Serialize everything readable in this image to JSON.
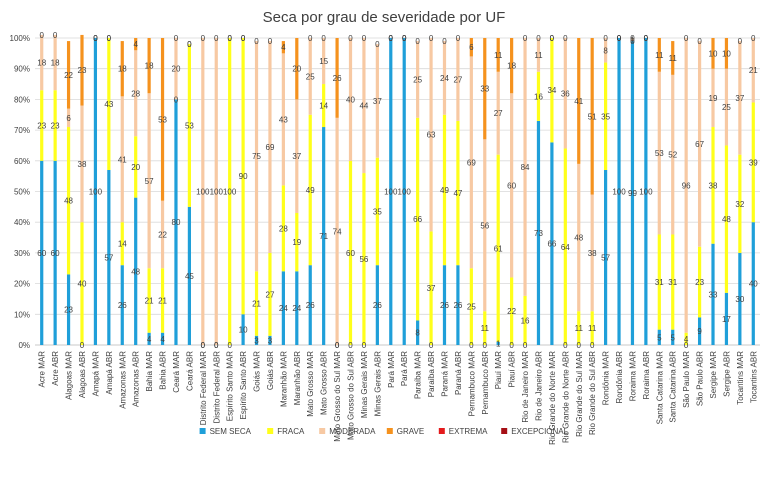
{
  "chart_data": {
    "type": "bar",
    "stacked": "percent",
    "title": "Seca por grau de severidade por UF",
    "xlabel": "",
    "ylabel": "",
    "ylim": [
      0,
      100
    ],
    "y_ticks": [
      "0%",
      "10%",
      "20%",
      "30%",
      "40%",
      "50%",
      "60%",
      "70%",
      "80%",
      "90%",
      "100%"
    ],
    "grid": true,
    "legend_position": "bottom",
    "categories": [
      "Acre MAR",
      "Acre ABR",
      "Alagoas MAR",
      "Alagoas ABR",
      "Amapá MAR",
      "Amapá ABR",
      "Amazonas MAR",
      "Amazonas ABR",
      "Bahia MAR",
      "Bahia ABR",
      "Ceará MAR",
      "Ceará ABR",
      "Distrito Federal MAR",
      "Distrito Federal ABR",
      "Espírito Santo MAR",
      "Espírito Santo ABR",
      "Goiás MAR",
      "Goiás ABR",
      "Maranhão MAR",
      "Maranhão ABR",
      "Mato Grosso MAR",
      "Mato Grosso ABR",
      "Mato Grosso do Sul MAR",
      "Mato Grosso do Sul ABR",
      "Minas Gerais MAR",
      "Minas Gerais ABR",
      "Pará MAR",
      "Pará ABR",
      "Paraíba MAR",
      "Paraíba ABR",
      "Paraná MAR",
      "Paraná ABR",
      "Pernambuco MAR",
      "Pernambuco ABR",
      "Piauí MAR",
      "Piauí ABR",
      "Rio de Janeiro MAR",
      "Rio de Janeiro ABR",
      "Rio Grande do Norte MAR",
      "Rio Grande do Norte ABR",
      "Rio Grande do Sul MAR",
      "Rio Grande do Sul ABR",
      "Rondônia MAR",
      "Rondônia ABR",
      "Roraima MAR",
      "Roraima ABR",
      "Santa Catarina MAR",
      "Santa Catarina ABR",
      "São Paulo MAR",
      "São Paulo ABR",
      "Sergipe MAR",
      "Sergipe ABR",
      "Tocantins MAR",
      "Tocantins ABR"
    ],
    "series": [
      {
        "name": "SEM SECA",
        "color": "#1f9fd9",
        "values": [
          60,
          60,
          23,
          0,
          100,
          57,
          26,
          48,
          4,
          4,
          80,
          45,
          0,
          0,
          0,
          10,
          3,
          3,
          24,
          24,
          26,
          71,
          0,
          0,
          0,
          26,
          100,
          100,
          8,
          0,
          26,
          26,
          0,
          0,
          1,
          0,
          0,
          73,
          66,
          0,
          0,
          0,
          57,
          100,
          99,
          100,
          5,
          5,
          0,
          9,
          33,
          17,
          30,
          40
        ]
      },
      {
        "name": "FRACA",
        "color": "#ffff1a",
        "values": [
          23,
          23,
          48,
          40,
          0,
          43,
          14,
          20,
          21,
          21,
          0,
          53,
          0,
          0,
          100,
          90,
          21,
          27,
          28,
          19,
          49,
          14,
          0,
          60,
          56,
          35,
          0,
          0,
          66,
          37,
          49,
          47,
          25,
          11,
          61,
          22,
          16,
          16,
          34,
          64,
          11,
          11,
          35,
          0,
          0,
          0,
          31,
          31,
          4,
          23,
          38,
          48,
          32,
          39
        ]
      },
      {
        "name": "MODERADA",
        "color": "#f7c9a3",
        "values": [
          18,
          18,
          6,
          38,
          0,
          0,
          41,
          28,
          57,
          22,
          20,
          0,
          100,
          100,
          0,
          0,
          75,
          69,
          43,
          37,
          25,
          15,
          74,
          40,
          44,
          37,
          0,
          0,
          25,
          63,
          24,
          27,
          69,
          56,
          27,
          60,
          84,
          11,
          0,
          36,
          48,
          38,
          8,
          0,
          1,
          0,
          53,
          52,
          96,
          67,
          19,
          25,
          37,
          21
        ]
      },
      {
        "name": "GRAVE",
        "color": "#f5921e",
        "values": [
          0,
          0,
          22,
          23,
          0,
          0,
          18,
          4,
          18,
          53,
          0,
          0,
          0,
          0,
          0,
          0,
          0,
          0,
          4,
          20,
          0,
          0,
          26,
          0,
          0,
          0,
          0,
          0,
          0,
          0,
          0,
          0,
          6,
          33,
          11,
          18,
          0,
          0,
          0,
          0,
          41,
          51,
          0,
          0,
          0,
          0,
          11,
          11,
          0,
          0,
          10,
          10,
          0,
          0
        ]
      },
      {
        "name": "EXTREMA",
        "color": "#e41a1c",
        "values": [
          0,
          0,
          0,
          0,
          0,
          0,
          0,
          0,
          0,
          0,
          0,
          0,
          0,
          0,
          0,
          0,
          0,
          0,
          0,
          0,
          0,
          0,
          0,
          0,
          0,
          0,
          0,
          0,
          0,
          0,
          0,
          0,
          0,
          0,
          0,
          0,
          0,
          0,
          0,
          0,
          0,
          0,
          0,
          0,
          0,
          0,
          0,
          0,
          0,
          0,
          0,
          0,
          0,
          0
        ]
      },
      {
        "name": "EXCEPCIONAL",
        "color": "#a50f15",
        "values": [
          0,
          0,
          0,
          0,
          0,
          0,
          0,
          0,
          0,
          0,
          0,
          0,
          0,
          0,
          0,
          0,
          0,
          0,
          0,
          0,
          0,
          0,
          0,
          0,
          0,
          0,
          0,
          0,
          0,
          0,
          0,
          0,
          0,
          0,
          0,
          0,
          0,
          0,
          0,
          0,
          0,
          0,
          0,
          0,
          0,
          0,
          0,
          0,
          0,
          0,
          0,
          0,
          0,
          0
        ]
      }
    ]
  }
}
